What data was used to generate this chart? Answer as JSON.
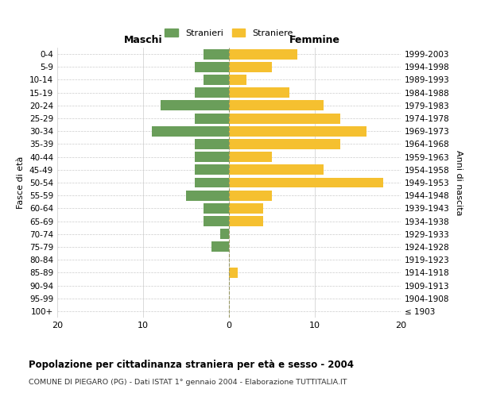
{
  "age_groups": [
    "100+",
    "95-99",
    "90-94",
    "85-89",
    "80-84",
    "75-79",
    "70-74",
    "65-69",
    "60-64",
    "55-59",
    "50-54",
    "45-49",
    "40-44",
    "35-39",
    "30-34",
    "25-29",
    "20-24",
    "15-19",
    "10-14",
    "5-9",
    "0-4"
  ],
  "birth_years": [
    "≤ 1903",
    "1904-1908",
    "1909-1913",
    "1914-1918",
    "1919-1923",
    "1924-1928",
    "1929-1933",
    "1934-1938",
    "1939-1943",
    "1944-1948",
    "1949-1953",
    "1954-1958",
    "1959-1963",
    "1964-1968",
    "1969-1973",
    "1974-1978",
    "1979-1983",
    "1984-1988",
    "1989-1993",
    "1994-1998",
    "1999-2003"
  ],
  "males": [
    0,
    0,
    0,
    0,
    0,
    2,
    1,
    3,
    3,
    5,
    4,
    4,
    4,
    4,
    9,
    4,
    8,
    4,
    3,
    4,
    3
  ],
  "females": [
    0,
    0,
    0,
    1,
    0,
    0,
    0,
    4,
    4,
    5,
    18,
    11,
    5,
    13,
    16,
    13,
    11,
    7,
    2,
    5,
    8
  ],
  "male_color": "#6a9e5a",
  "female_color": "#f5c030",
  "background_color": "#ffffff",
  "grid_color": "#cccccc",
  "title": "Popolazione per cittadinanza straniera per età e sesso - 2004",
  "subtitle": "COMUNE DI PIEGARO (PG) - Dati ISTAT 1° gennaio 2004 - Elaborazione TUTTITALIA.IT",
  "xlabel_left": "Maschi",
  "xlabel_right": "Femmine",
  "ylabel_left": "Fasce di età",
  "ylabel_right": "Anni di nascita",
  "legend_male": "Stranieri",
  "legend_female": "Straniere",
  "xlim": 20,
  "bar_height": 0.8
}
